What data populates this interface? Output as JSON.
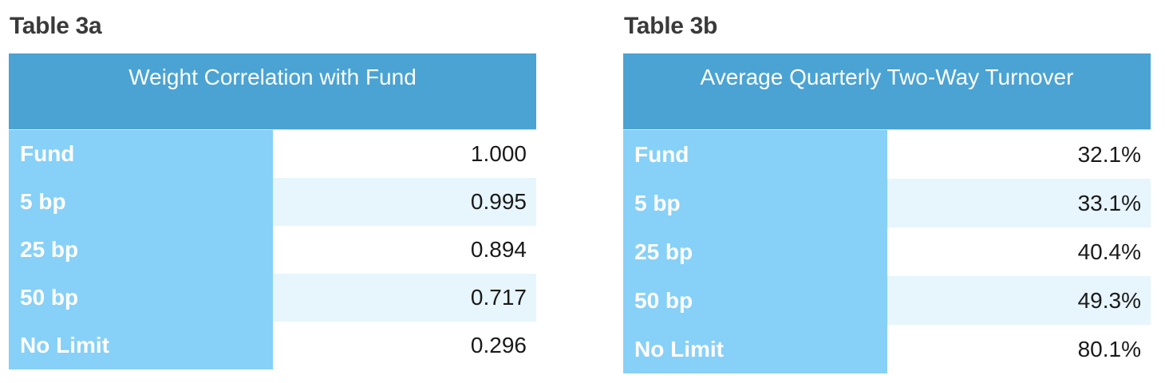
{
  "tables": [
    {
      "caption": "Table 3a",
      "header": "Weight Correlation with Fund",
      "rows": [
        {
          "label": "Fund",
          "value": "1.000"
        },
        {
          "label": "5 bp",
          "value": "0.995"
        },
        {
          "label": "25 bp",
          "value": "0.894"
        },
        {
          "label": "50 bp",
          "value": "0.717"
        },
        {
          "label": "No Limit",
          "value": "0.296"
        }
      ]
    },
    {
      "caption": "Table 3b",
      "header": "Average Quarterly Two-Way Turnover",
      "rows": [
        {
          "label": "Fund",
          "value": "32.1%"
        },
        {
          "label": "5 bp",
          "value": "33.1%"
        },
        {
          "label": "25 bp",
          "value": "40.4%"
        },
        {
          "label": "50 bp",
          "value": "49.3%"
        },
        {
          "label": "No Limit",
          "value": "80.1%"
        }
      ]
    }
  ],
  "colors": {
    "header_bg": "#4aa3d3",
    "label_bg": "#87d0f7",
    "shaded_row_bg": "#e7f5fd",
    "caption_text": "#3a3a3a"
  }
}
